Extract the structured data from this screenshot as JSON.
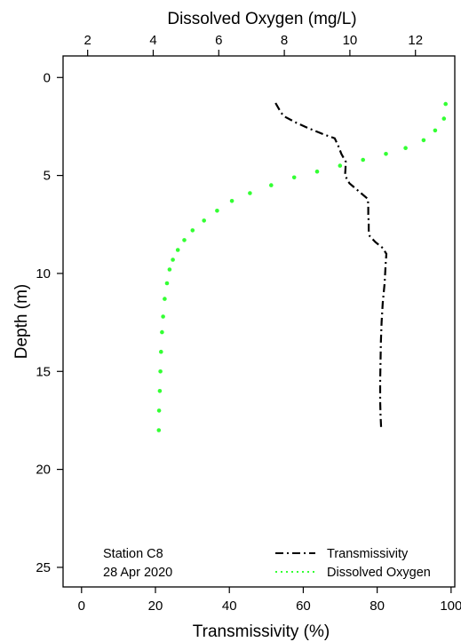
{
  "chart_data": {
    "type": "line",
    "top_axis_label": "Dissolved Oxygen (mg/L)",
    "bottom_axis_label": "Transmissivity (%)",
    "left_axis_label": "Depth (m)",
    "top_axis": {
      "range": [
        1.25,
        13.2
      ],
      "ticks": [
        "2",
        "4",
        "6",
        "8",
        "10",
        "12"
      ]
    },
    "bottom_axis": {
      "range": [
        -5,
        101
      ],
      "ticks": [
        "0",
        "20",
        "40",
        "60",
        "80",
        "100"
      ]
    },
    "depth_axis": {
      "range": [
        26,
        -1.1
      ],
      "inverted": true,
      "ticks": [
        "0",
        "5",
        "10",
        "15",
        "20",
        "25"
      ]
    },
    "annotation_lines": [
      "Station C8",
      "28 Apr 2020"
    ],
    "legend_position": "bottom-right",
    "series": [
      {
        "name": "Transmissivity",
        "axis": "bottom",
        "color": "#000000",
        "style": "dash-dot",
        "points": [
          [
            52.5,
            1.3
          ],
          [
            54.0,
            1.8
          ],
          [
            55.0,
            2.0
          ],
          [
            58.0,
            2.3
          ],
          [
            61.5,
            2.6
          ],
          [
            65.5,
            2.9
          ],
          [
            68.5,
            3.1
          ],
          [
            69.5,
            3.5
          ],
          [
            70.3,
            3.9
          ],
          [
            71.5,
            4.3
          ],
          [
            71.4,
            4.7
          ],
          [
            71.3,
            5.0
          ],
          [
            72.5,
            5.4
          ],
          [
            75.0,
            5.8
          ],
          [
            77.5,
            6.2
          ],
          [
            77.6,
            6.6
          ],
          [
            77.6,
            7.0
          ],
          [
            77.7,
            7.4
          ],
          [
            77.7,
            7.8
          ],
          [
            78.0,
            8.1
          ],
          [
            79.5,
            8.4
          ],
          [
            81.5,
            8.7
          ],
          [
            82.5,
            9.0
          ],
          [
            82.3,
            9.5
          ],
          [
            82.0,
            10.5
          ],
          [
            81.5,
            11.5
          ],
          [
            81.2,
            12.5
          ],
          [
            81.0,
            13.5
          ],
          [
            80.9,
            14.5
          ],
          [
            80.8,
            15.5
          ],
          [
            80.8,
            16.5
          ],
          [
            80.9,
            17.2
          ],
          [
            81.1,
            18.0
          ]
        ]
      },
      {
        "name": "Dissolved Oxygen",
        "axis": "top",
        "color": "#33ff33",
        "style": "dotted",
        "points": [
          [
            12.92,
            1.35
          ],
          [
            12.87,
            2.1
          ],
          [
            12.6,
            2.7
          ],
          [
            12.25,
            3.2
          ],
          [
            11.7,
            3.6
          ],
          [
            11.1,
            3.9
          ],
          [
            10.4,
            4.2
          ],
          [
            9.7,
            4.5
          ],
          [
            9.0,
            4.8
          ],
          [
            8.3,
            5.1
          ],
          [
            7.6,
            5.5
          ],
          [
            6.95,
            5.9
          ],
          [
            6.4,
            6.3
          ],
          [
            5.95,
            6.8
          ],
          [
            5.55,
            7.3
          ],
          [
            5.2,
            7.8
          ],
          [
            4.95,
            8.3
          ],
          [
            4.75,
            8.8
          ],
          [
            4.6,
            9.3
          ],
          [
            4.5,
            9.8
          ],
          [
            4.42,
            10.5
          ],
          [
            4.35,
            11.3
          ],
          [
            4.3,
            12.2
          ],
          [
            4.27,
            13.0
          ],
          [
            4.24,
            14.0
          ],
          [
            4.22,
            15.0
          ],
          [
            4.2,
            16.0
          ],
          [
            4.18,
            17.0
          ],
          [
            4.17,
            18.0
          ]
        ]
      }
    ]
  }
}
